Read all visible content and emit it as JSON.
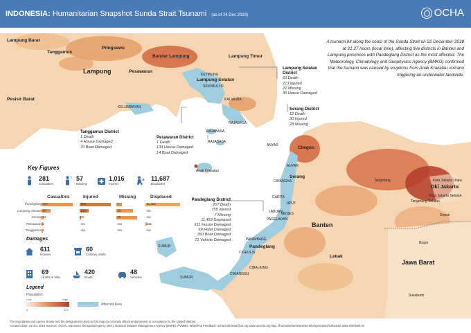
{
  "header": {
    "country": "INDONESIA:",
    "title": "Humanitarian Snapshot Sunda Strait Tsunami",
    "date": "(as of 24 Dec 2018)",
    "logo": "OCHA",
    "logo_icon": "un-emblem-icon",
    "bg_color": "#4a7ab8"
  },
  "intro": "A tsunami hit along the coast of the Sunda Strait on 22 December 2018 at 21:27 hours (local time), affecting five districts in Banten and Lampung provinces with Pandeglang District as the most affected. The Meteorology, Climatology and Geophysics Agency (BMKG) confirmed that the tsunami was caused by eruptions from Anak Krakatau volcano triggering an underwater landslide.",
  "map_labels": {
    "lampung_barat": "Lampung Barat",
    "tanggamus": "Tanggamus",
    "pringsewu": "Pringsewu",
    "bandar_lampung": "Bandar Lampung",
    "lampung_timur": "Lampung Timur",
    "lampung": "Lampung",
    "pesawaran": "Pesawaran",
    "lampung_selatan": "Lampung Selatan",
    "pesisir_barat": "Pesisir Barat",
    "ketibung": "KETIBUNG",
    "sidomulyo": "SIDOMULYO",
    "kalianda": "KALIANDA",
    "kelumbayan": "KELUMBAYAN",
    "rajabasa": "RAJABASA",
    "rajabasa2": "RAJABASA",
    "rajabasa3": "RAJABASA",
    "anak_krakatau": "Anak Krakatau",
    "anyar": "ANYAR",
    "anyar2": "ANYAR",
    "cilegon": "Cilegon",
    "serang": "Serang",
    "cinangka": "CINANGKA",
    "carita": "CARITA",
    "jiput": "JIPUT",
    "labuan": "LABUAN",
    "menes": "MENES",
    "pagelaran": "PAGELARAN",
    "banten": "Banten",
    "tangerang": "Tangerang",
    "dki_jakarta": "Dki Jakarta",
    "kota_jakarta_utara": "Kota Jakarta Utara",
    "kota_jakarta_selatan": "Kota Jakarta Selatan",
    "tangerang_selatan": "Tangerang Selatan",
    "depok": "Depok",
    "bogor": "Bogor",
    "jawa_barat": "Jawa Barat",
    "lebak": "Lebak",
    "panimbang": "PANIMBANG",
    "pandeglang": "Pandeglang",
    "cigeulis": "CIGEULIS",
    "sumur": "SUMUR",
    "sumur2": "SUMUR",
    "cibaliung": "CIBALIUNG",
    "cimanggu": "CIMANGGU",
    "sukabumi": "Sukabumi"
  },
  "callouts": {
    "lampung_selatan": {
      "name": "Lampung Selatan District",
      "lines": [
        "60 Death",
        "213 injured",
        "22 Missing",
        "30 House Damaged"
      ]
    },
    "serang": {
      "name": "Serang District",
      "lines": [
        "12 Death",
        "30 Injured",
        "28 Missing"
      ]
    },
    "tanggamus": {
      "name": "Tanggamus District",
      "lines": [
        "1 Death",
        "4 House Damaged",
        "70 Boat Damaged"
      ]
    },
    "pesawaran": {
      "name": "Pesawaran District",
      "lines": [
        "1 Death",
        "134 House Damaged",
        "14 Boat Damaged"
      ]
    },
    "pandeglang": {
      "name": "Pandeglang District",
      "lines": [
        "207 Death",
        "755 injured",
        "7 Missing",
        "11,453 Displaced",
        "611 House Damaged",
        "69 Hotel Damaged",
        "350 Boat Damaged",
        "71 Vehicle Damaged"
      ]
    }
  },
  "key_figures": {
    "title": "Key Figures",
    "items": [
      {
        "value": "281",
        "label": "Casualties",
        "icon": "person-casualty-icon"
      },
      {
        "value": "57",
        "label": "Missing",
        "icon": "person-missing-icon"
      },
      {
        "value": "1,016",
        "label": "Injured",
        "icon": "injured-icon"
      },
      {
        "value": "11,687",
        "label": "Displaced",
        "icon": "displaced-icon"
      }
    ]
  },
  "table": {
    "headers": [
      "Casualties",
      "Injured",
      "Missing",
      "Displaced"
    ],
    "rows": [
      {
        "district": "Pandeglang",
        "casualties": "207",
        "injured": "755",
        "missing": "7",
        "displaced": "11,453"
      },
      {
        "district": "Lampung Selatan",
        "casualties": "60",
        "injured": "213",
        "missing": "22",
        "displaced": "n/a"
      },
      {
        "district": "Serang",
        "casualties": "12",
        "injured": "30",
        "missing": "28",
        "displaced": "n/a"
      },
      {
        "district": "Pesawaran",
        "casualties": "1",
        "injured": "n/a",
        "missing": "n/a",
        "displaced": "221"
      },
      {
        "district": "Tanggamus",
        "casualties": "1",
        "injured": "n/a",
        "missing": "n/a",
        "displaced": "n/a"
      }
    ],
    "bar_fractions": {
      "casualties": [
        1.0,
        0.29,
        0.06,
        0.005,
        0.005
      ],
      "injured": [
        1.0,
        0.28,
        0.04,
        0,
        0
      ],
      "missing": [
        0.25,
        0.79,
        1.0,
        0,
        0
      ],
      "displaced": [
        1.0,
        0,
        0,
        0.02,
        0
      ]
    }
  },
  "damages": {
    "title": "Damages",
    "items": [
      {
        "value": "611",
        "label": "Houses",
        "icon": "house-icon"
      },
      {
        "value": "60",
        "label": "Culinary Stalls",
        "icon": "stall-icon"
      },
      {
        "value": "69",
        "label": "Hotels & Villa",
        "icon": "hotel-icon"
      },
      {
        "value": "420",
        "label": "Boats",
        "icon": "boat-icon"
      },
      {
        "value": "48",
        "label": "Vehicles",
        "icon": "vehicle-icon"
      }
    ]
  },
  "legend": {
    "title": "Legend",
    "population_label": "Population",
    "low": "Low",
    "high": "High",
    "min": "0",
    "max": "324",
    "affected_area": "Affected Area",
    "colors": {
      "water": "#ffffff",
      "land_low": "#f7e2c8",
      "land_high": "#c0452e",
      "affected": "#9fcde0"
    }
  },
  "footer": {
    "line1": "The boundaries and names shown and the designations used on this map do not imply official endorsement or acceptance by the United Nations.",
    "line2": "Creation date: 24 Dec 2018 Sources: OCHA, Indonesia Geospatial Agency (BIG), National Disaster Management Agency (BNPB), PVMBG, WorldPop Feedback: ocha-indonesia@un.org www.unocha.org http: //humanitarianresponse.info/operations/indonesia www.reliefweb.int"
  }
}
